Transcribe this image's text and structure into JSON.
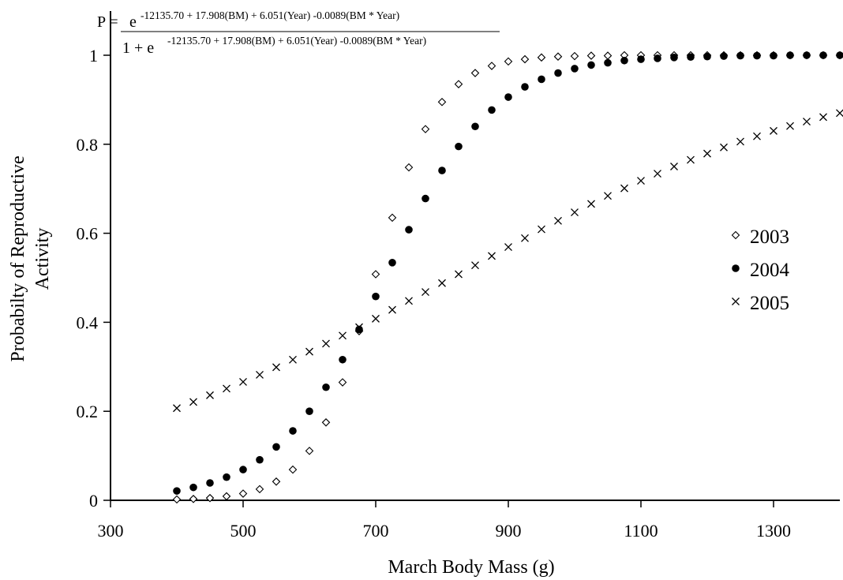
{
  "equation": {
    "lhs": "P =",
    "num_base": "e",
    "num_exp": "-12135.70 + 17.908(BM) + 6.051(Year) -0.0089(BM * Year)",
    "den_prefix": "1 + e",
    "den_exp": "-12135.70 + 17.908(BM) + 6.051(Year) -0.0089(BM * Year)"
  },
  "chart_data": {
    "type": "scatter",
    "title": "",
    "xlabel": "March Body Mass (g)",
    "ylabel_lines": [
      "Probabilty of Reproductive",
      "Activity"
    ],
    "xlim": [
      300,
      1400
    ],
    "ylim": [
      0,
      1
    ],
    "xticks": [
      300,
      500,
      700,
      900,
      1100,
      1300
    ],
    "xtick_labels": [
      "300",
      "500",
      "700",
      "900",
      "1100",
      "1300"
    ],
    "yticks": [
      0,
      0.2,
      0.4,
      0.6,
      0.8,
      1
    ],
    "ytick_labels": [
      "0",
      "0.2",
      "0.4",
      "0.6",
      "0.8",
      "1"
    ],
    "grid": false,
    "legend_position": "right",
    "x": [
      400,
      425,
      450,
      475,
      500,
      525,
      550,
      575,
      600,
      625,
      650,
      675,
      700,
      725,
      750,
      775,
      800,
      825,
      850,
      875,
      900,
      925,
      950,
      975,
      1000,
      1025,
      1050,
      1075,
      1100,
      1125,
      1150,
      1175,
      1200,
      1225,
      1250,
      1275,
      1300,
      1325,
      1350,
      1375,
      1400
    ],
    "series": [
      {
        "name": "2003",
        "marker": "diamond-open",
        "values": [
          0.002,
          0.003,
          0.005,
          0.009,
          0.015,
          0.025,
          0.042,
          0.069,
          0.111,
          0.175,
          0.265,
          0.38,
          0.508,
          0.635,
          0.748,
          0.834,
          0.895,
          0.935,
          0.96,
          0.976,
          0.986,
          0.991,
          0.995,
          0.997,
          0.998,
          0.999,
          0.999,
          1,
          1,
          1,
          1,
          1,
          1,
          1,
          1,
          1,
          1,
          1,
          1,
          1,
          1
        ]
      },
      {
        "name": "2004",
        "marker": "circle-filled",
        "values": [
          0.021,
          0.029,
          0.039,
          0.052,
          0.069,
          0.091,
          0.12,
          0.156,
          0.2,
          0.254,
          0.316,
          0.384,
          0.458,
          0.534,
          0.608,
          0.678,
          0.741,
          0.795,
          0.84,
          0.877,
          0.906,
          0.929,
          0.946,
          0.96,
          0.97,
          0.978,
          0.983,
          0.988,
          0.991,
          0.993,
          0.995,
          0.996,
          0.997,
          0.998,
          0.999,
          0.999,
          0.999,
          1,
          1,
          1,
          1
        ]
      },
      {
        "name": "2005",
        "marker": "cross",
        "values": [
          0.207,
          0.221,
          0.236,
          0.251,
          0.266,
          0.282,
          0.299,
          0.316,
          0.334,
          0.352,
          0.37,
          0.389,
          0.408,
          0.428,
          0.448,
          0.468,
          0.488,
          0.508,
          0.528,
          0.549,
          0.569,
          0.589,
          0.609,
          0.628,
          0.647,
          0.666,
          0.684,
          0.701,
          0.718,
          0.734,
          0.75,
          0.765,
          0.779,
          0.793,
          0.806,
          0.818,
          0.83,
          0.841,
          0.851,
          0.861,
          0.87
        ]
      }
    ]
  }
}
